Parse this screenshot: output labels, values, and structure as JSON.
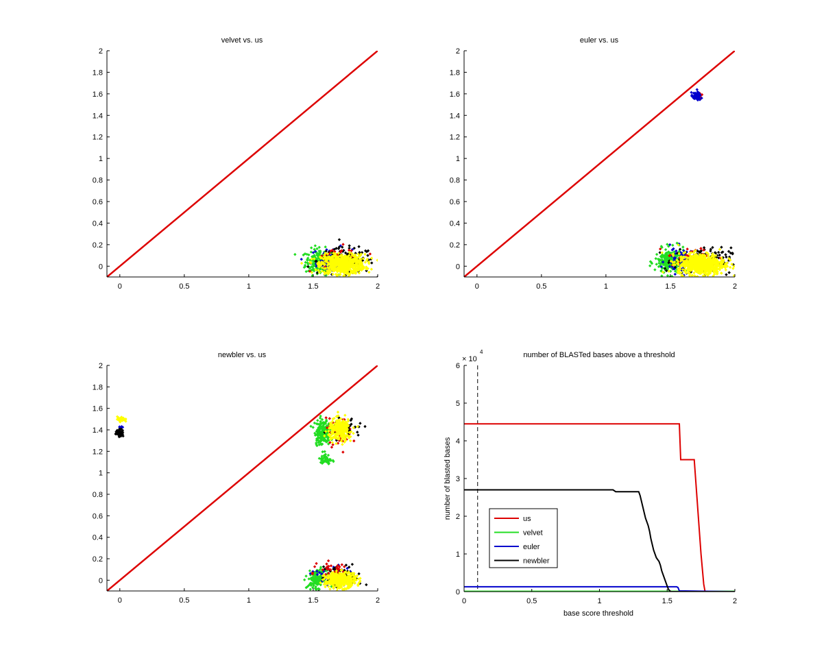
{
  "colors": {
    "us": "#dd0000",
    "velvet": "#22dd22",
    "euler": "#0000cc",
    "newbler": "#000000",
    "yellow": "#ffff00"
  },
  "chart_data": [
    {
      "type": "scatter",
      "title": "velvet vs. us",
      "xlim": [
        -0.1,
        2
      ],
      "ylim": [
        -0.1,
        2
      ],
      "xticks": [
        "0",
        "0.5",
        "1",
        "1.5",
        "2"
      ],
      "xtick_values": [
        0,
        0.5,
        1,
        1.5,
        2
      ],
      "yticks": [
        "0",
        "0.2",
        "0.4",
        "0.6",
        "0.8",
        "1",
        "1.2",
        "1.4",
        "1.6",
        "1.8",
        "2"
      ],
      "ytick_values": [
        0,
        0.2,
        0.4,
        0.6,
        0.8,
        1,
        1.2,
        1.4,
        1.6,
        1.8,
        2
      ],
      "diagonal": {
        "from": [
          -0.1,
          -0.1
        ],
        "to": [
          2,
          2
        ],
        "color": "us"
      },
      "clusters": [
        {
          "color": "velvet",
          "cx": 1.55,
          "cy": 0.04,
          "sx": 0.055,
          "sy": 0.06,
          "n": 220
        },
        {
          "color": "euler",
          "cx": 1.64,
          "cy": 0.05,
          "sx": 0.08,
          "sy": 0.06,
          "n": 60
        },
        {
          "color": "newbler",
          "cx": 1.75,
          "cy": 0.05,
          "sx": 0.11,
          "sy": 0.06,
          "n": 150
        },
        {
          "color": "us",
          "cx": 1.7,
          "cy": 0.08,
          "sx": 0.1,
          "sy": 0.05,
          "n": 35
        },
        {
          "color": "yellow",
          "cx": 1.73,
          "cy": 0.02,
          "sx": 0.085,
          "sy": 0.045,
          "n": 650
        }
      ]
    },
    {
      "type": "scatter",
      "title": "euler vs. us",
      "xlim": [
        -0.1,
        2
      ],
      "ylim": [
        -0.1,
        2
      ],
      "xticks": [
        "0",
        "0.5",
        "1",
        "1.5",
        "2"
      ],
      "xtick_values": [
        0,
        0.5,
        1,
        1.5,
        2
      ],
      "yticks": [
        "0",
        "0.2",
        "0.4",
        "0.6",
        "0.8",
        "1",
        "1.2",
        "1.4",
        "1.6",
        "1.8",
        "2"
      ],
      "ytick_values": [
        0,
        0.2,
        0.4,
        0.6,
        0.8,
        1,
        1.2,
        1.4,
        1.6,
        1.8,
        2
      ],
      "diagonal": {
        "from": [
          -0.1,
          -0.1
        ],
        "to": [
          2,
          2
        ],
        "color": "us"
      },
      "clusters": [
        {
          "color": "velvet",
          "cx": 1.5,
          "cy": 0.04,
          "sx": 0.06,
          "sy": 0.06,
          "n": 220
        },
        {
          "color": "euler",
          "cx": 1.6,
          "cy": 0.05,
          "sx": 0.07,
          "sy": 0.06,
          "n": 80
        },
        {
          "color": "newbler",
          "cx": 1.75,
          "cy": 0.05,
          "sx": 0.11,
          "sy": 0.06,
          "n": 150
        },
        {
          "color": "us",
          "cx": 1.68,
          "cy": 0.08,
          "sx": 0.1,
          "sy": 0.05,
          "n": 40
        },
        {
          "color": "yellow",
          "cx": 1.74,
          "cy": 0.02,
          "sx": 0.09,
          "sy": 0.05,
          "n": 650
        },
        {
          "color": "us",
          "cx": 1.72,
          "cy": 1.57,
          "sx": 0.018,
          "sy": 0.018,
          "n": 25
        },
        {
          "color": "euler",
          "cx": 1.7,
          "cy": 1.575,
          "sx": 0.018,
          "sy": 0.018,
          "n": 60
        }
      ]
    },
    {
      "type": "scatter",
      "title": "newbler vs. us",
      "xlim": [
        -0.1,
        2
      ],
      "ylim": [
        -0.1,
        2
      ],
      "xticks": [
        "0",
        "0.5",
        "1",
        "1.5",
        "2"
      ],
      "xtick_values": [
        0,
        0.5,
        1,
        1.5,
        2
      ],
      "yticks": [
        "0",
        "0.2",
        "0.4",
        "0.6",
        "0.8",
        "1",
        "1.2",
        "1.4",
        "1.6",
        "1.8",
        "2"
      ],
      "ytick_values": [
        0,
        0.2,
        0.4,
        0.6,
        0.8,
        1,
        1.2,
        1.4,
        1.6,
        1.8,
        2
      ],
      "diagonal": {
        "from": [
          -0.1,
          -0.1
        ],
        "to": [
          2,
          2
        ],
        "color": "us"
      },
      "clusters": [
        {
          "color": "yellow",
          "cx": 0.01,
          "cy": 1.5,
          "sx": 0.015,
          "sy": 0.012,
          "n": 35
        },
        {
          "color": "euler",
          "cx": 0.01,
          "cy": 1.43,
          "sx": 0.008,
          "sy": 0.008,
          "n": 6
        },
        {
          "color": "newbler",
          "cx": 0.0,
          "cy": 1.37,
          "sx": 0.015,
          "sy": 0.017,
          "n": 55
        },
        {
          "color": "velvet",
          "cx": 1.57,
          "cy": 1.38,
          "sx": 0.03,
          "sy": 0.06,
          "n": 180
        },
        {
          "color": "velvet",
          "cx": 1.6,
          "cy": 1.12,
          "sx": 0.022,
          "sy": 0.025,
          "n": 50
        },
        {
          "color": "us",
          "cx": 1.7,
          "cy": 1.38,
          "sx": 0.05,
          "sy": 0.06,
          "n": 70
        },
        {
          "color": "newbler",
          "cx": 1.76,
          "cy": 1.42,
          "sx": 0.06,
          "sy": 0.05,
          "n": 35
        },
        {
          "color": "yellow",
          "cx": 1.71,
          "cy": 1.4,
          "sx": 0.045,
          "sy": 0.05,
          "n": 260
        },
        {
          "color": "velvet",
          "cx": 1.53,
          "cy": 0.01,
          "sx": 0.035,
          "sy": 0.04,
          "n": 150
        },
        {
          "color": "euler",
          "cx": 1.64,
          "cy": 0.04,
          "sx": 0.07,
          "sy": 0.05,
          "n": 50
        },
        {
          "color": "newbler",
          "cx": 1.72,
          "cy": 0.03,
          "sx": 0.08,
          "sy": 0.05,
          "n": 90
        },
        {
          "color": "us",
          "cx": 1.66,
          "cy": 0.1,
          "sx": 0.06,
          "sy": 0.035,
          "n": 35
        },
        {
          "color": "yellow",
          "cx": 1.71,
          "cy": 0.0,
          "sx": 0.06,
          "sy": 0.035,
          "n": 400
        }
      ]
    },
    {
      "type": "line",
      "title": "number of BLASTed bases above a threshold",
      "xlabel": "base score threshold",
      "ylabel": "number of blasted bases",
      "exponent_label": "× 10",
      "exponent": "4",
      "xlim": [
        0,
        2
      ],
      "ylim": [
        0,
        6
      ],
      "xticks": [
        "0",
        "0.5",
        "1",
        "1.5",
        "2"
      ],
      "xtick_values": [
        0,
        0.5,
        1,
        1.5,
        2
      ],
      "yticks": [
        "0",
        "1",
        "2",
        "3",
        "4",
        "5",
        "6"
      ],
      "ytick_values": [
        0,
        1,
        2,
        3,
        4,
        5,
        6
      ],
      "threshold_line_x": 0.1,
      "series": [
        {
          "name": "us",
          "color": "us",
          "x": [
            0,
            1.59,
            1.6,
            1.7,
            1.71,
            1.72,
            1.73,
            1.74,
            1.75,
            1.76,
            1.77,
            1.78,
            2
          ],
          "y": [
            4.45,
            4.45,
            3.5,
            3.5,
            3.0,
            2.5,
            2.0,
            1.5,
            1.0,
            0.6,
            0.2,
            0,
            0
          ]
        },
        {
          "name": "velvet",
          "color": "velvet",
          "x": [
            0,
            2
          ],
          "y": [
            0.01,
            0.01
          ]
        },
        {
          "name": "euler",
          "color": "euler",
          "x": [
            0,
            1.57,
            1.58,
            1.59,
            2
          ],
          "y": [
            0.13,
            0.13,
            0.11,
            0.02,
            0
          ]
        },
        {
          "name": "newbler",
          "color": "newbler",
          "x": [
            0,
            1.1,
            1.12,
            1.29,
            1.3,
            1.31,
            1.32,
            1.33,
            1.34,
            1.35,
            1.36,
            1.37,
            1.38,
            1.39,
            1.4,
            1.41,
            1.42,
            1.43,
            1.44,
            1.45,
            1.46,
            1.47,
            1.48,
            1.49,
            1.5,
            1.51,
            1.52,
            1.53,
            2
          ],
          "y": [
            2.7,
            2.7,
            2.65,
            2.65,
            2.55,
            2.4,
            2.25,
            2.1,
            1.95,
            1.85,
            1.75,
            1.6,
            1.4,
            1.25,
            1.1,
            1.0,
            0.9,
            0.85,
            0.8,
            0.7,
            0.55,
            0.45,
            0.35,
            0.25,
            0.15,
            0.06,
            0.02,
            0,
            0
          ]
        }
      ],
      "legend": [
        "us",
        "velvet",
        "euler",
        "newbler"
      ]
    }
  ]
}
